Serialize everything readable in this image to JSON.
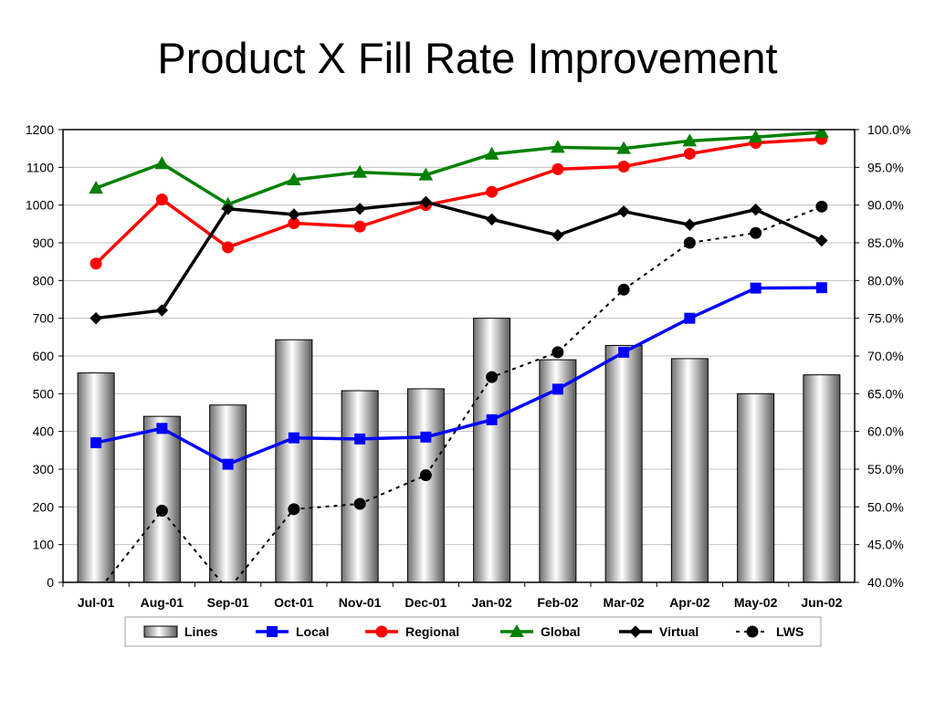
{
  "title": "Product X Fill Rate Improvement",
  "chart_data": {
    "type": "bar",
    "title": "Product X Fill Rate Improvement",
    "categories": [
      "Jul-01",
      "Aug-01",
      "Sep-01",
      "Oct-01",
      "Nov-01",
      "Dec-01",
      "Jan-02",
      "Feb-02",
      "Mar-02",
      "Apr-02",
      "May-02",
      "Jun-02"
    ],
    "y_left": {
      "ylim": [
        0,
        1200
      ],
      "ticks": [
        "0",
        "100",
        "200",
        "300",
        "400",
        "500",
        "600",
        "700",
        "800",
        "900",
        "1000",
        "1100",
        "1200"
      ]
    },
    "y_right": {
      "ylim": [
        40,
        100
      ],
      "ticks": [
        "40.0%",
        "45.0%",
        "50.0%",
        "55.0%",
        "60.0%",
        "65.0%",
        "70.0%",
        "75.0%",
        "80.0%",
        "85.0%",
        "90.0%",
        "95.0%",
        "100.0%"
      ]
    },
    "grid": true,
    "legend_position": "bottom",
    "series": [
      {
        "name": "Lines",
        "type": "bar",
        "axis": "left",
        "color": "#a0a0a0",
        "values": [
          555,
          440,
          470,
          643,
          508,
          513,
          700,
          590,
          628,
          593,
          500,
          550
        ]
      },
      {
        "name": "Local",
        "type": "line",
        "axis": "left",
        "color": "#0000ff",
        "marker": "square",
        "dash": false,
        "values": [
          370,
          408,
          313,
          383,
          380,
          385,
          431,
          512,
          610,
          700,
          780,
          781
        ]
      },
      {
        "name": "Regional",
        "type": "line",
        "axis": "left",
        "color": "#ff0000",
        "marker": "circle",
        "dash": false,
        "values": [
          845,
          1015,
          888,
          952,
          943,
          1000,
          1035,
          1095,
          1102,
          1136,
          1165,
          1175
        ]
      },
      {
        "name": "Global",
        "type": "line",
        "axis": "left",
        "color": "#008000",
        "marker": "triangle",
        "dash": false,
        "values": [
          1045,
          1110,
          1002,
          1067,
          1087,
          1080,
          1135,
          1153,
          1150,
          1170,
          1180,
          1193
        ]
      },
      {
        "name": "Virtual",
        "type": "line",
        "axis": "left",
        "color": "#000000",
        "marker": "diamond",
        "dash": false,
        "values": [
          700,
          721,
          990,
          975,
          990,
          1008,
          962,
          920,
          983,
          948,
          988,
          906
        ]
      },
      {
        "name": "LWS",
        "type": "line",
        "axis": "right",
        "color": "#000000",
        "marker": "dot",
        "dash": true,
        "values": [
          38.5,
          49.5,
          39.0,
          49.7,
          50.4,
          54.2,
          67.2,
          70.5,
          78.8,
          85.0,
          86.3,
          89.8
        ]
      }
    ]
  }
}
